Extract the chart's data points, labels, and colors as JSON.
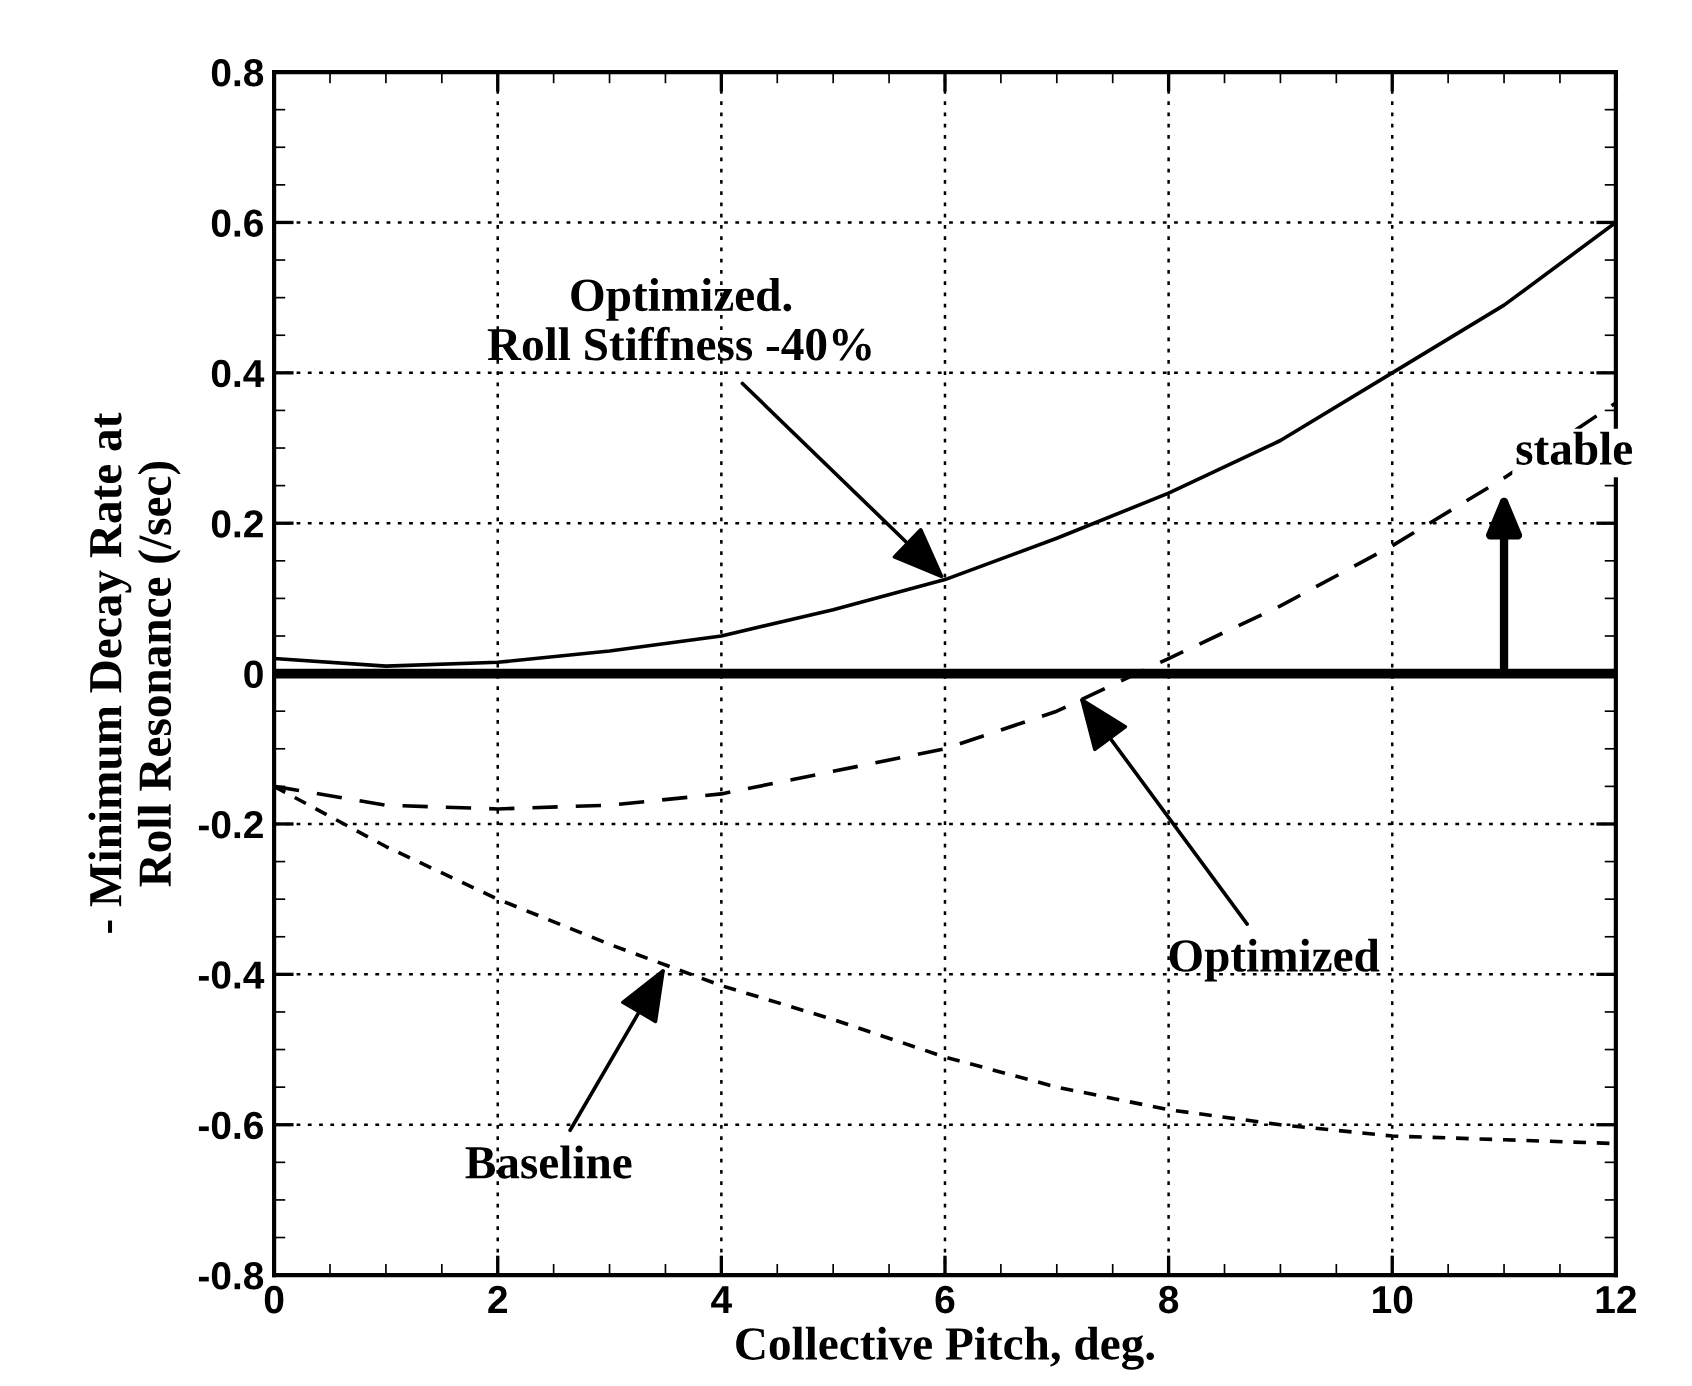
{
  "chart_data": {
    "type": "line",
    "xlabel": "Collective Pitch, deg.",
    "ylabel": "- Minimum Decay Rate at\nRoll Resonance (/sec)",
    "x": [
      0,
      1,
      2,
      3,
      4,
      5,
      6,
      7,
      8,
      9,
      10,
      11,
      12
    ],
    "series": [
      {
        "color": "#000000",
        "line_style": "solid",
        "values": [
          0.02,
          0.01,
          0.015,
          0.03,
          0.05,
          0.085,
          0.125,
          0.18,
          0.24,
          0.31,
          0.4,
          0.49,
          0.6
        ]
      },
      {
        "color": "#000000",
        "line_style": "dashed",
        "values": [
          -0.15,
          -0.175,
          -0.18,
          -0.175,
          -0.16,
          -0.13,
          -0.1,
          -0.05,
          0.02,
          0.09,
          0.17,
          0.26,
          0.36
        ]
      },
      {
        "color": "#000000",
        "line_style": "dotted",
        "values": [
          -0.15,
          -0.23,
          -0.3,
          -0.36,
          -0.415,
          -0.46,
          -0.51,
          -0.55,
          -0.58,
          -0.6,
          -0.615,
          -0.62,
          -0.625
        ]
      }
    ],
    "xlim": [
      0,
      12
    ],
    "xticks": [
      0,
      2,
      4,
      6,
      8,
      10,
      12
    ],
    "ylim": [
      -0.8,
      0.8
    ],
    "yticks": [
      -0.8,
      -0.6,
      -0.4,
      -0.2,
      0,
      0.2,
      0.4,
      0.6,
      0.8
    ],
    "grid": true,
    "marker": "none",
    "ref_lines": [
      {
        "axis": "y",
        "value": 0,
        "color": "#000000"
      }
    ],
    "annotations": [
      {
        "text": "Optimized.\nRoll Stiffness -40%",
        "x": 6,
        "y": 0.125
      },
      {
        "text": "Optimized",
        "x": 7.2,
        "y": -0.03
      },
      {
        "text": "Baseline",
        "x": 3.5,
        "y": -0.39
      },
      {
        "text": "stable",
        "x": 11,
        "y": 0.25
      }
    ]
  }
}
